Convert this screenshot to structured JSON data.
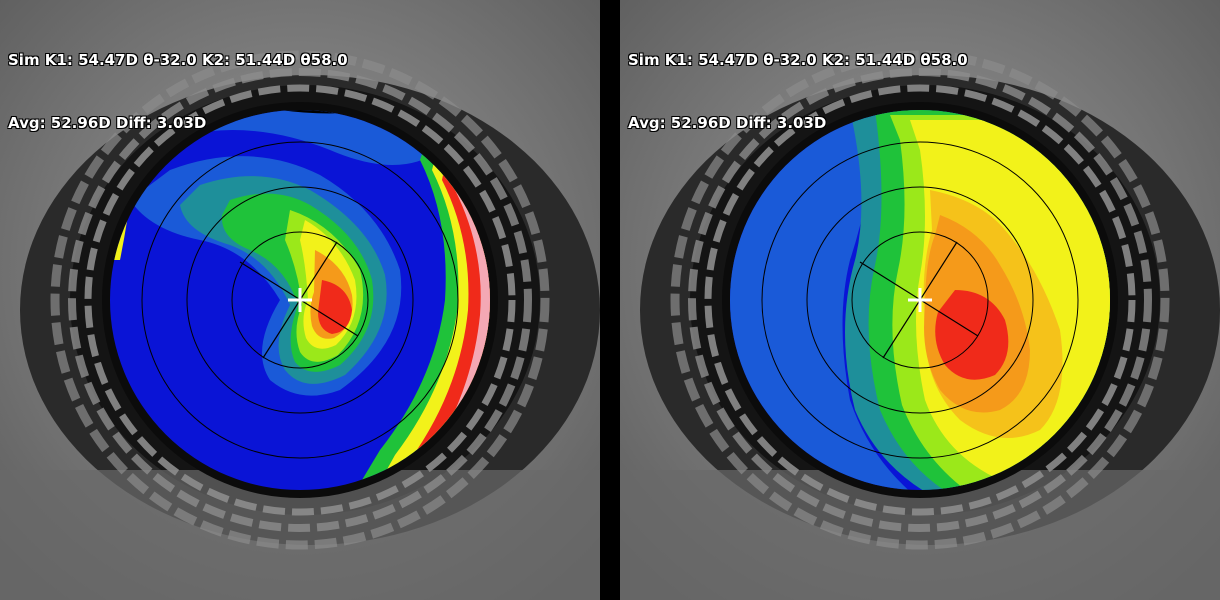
{
  "panels": [
    {
      "name": "left",
      "map": "tangential",
      "readout": {
        "line1": "Sim K1: 54.47D θ-32.0 K2: 51.44D θ58.0",
        "line2": "Avg: 52.96D Diff: 3.03D"
      }
    },
    {
      "name": "right",
      "map": "axial",
      "readout": {
        "line1": "Sim K1: 54.47D θ-32.0 K2: 51.44D θ58.0",
        "line2": "Avg: 52.96D Diff: 3.03D"
      }
    }
  ],
  "colors": {
    "deep_blue": "#0a14d6",
    "mid_blue": "#1a5ad8",
    "teal": "#1e8f9a",
    "green": "#1fc23a",
    "lime": "#9be81a",
    "yellow": "#f2f21a",
    "orange": "#f59a1a",
    "red": "#f02a1a",
    "white": "#f4f0f4"
  }
}
